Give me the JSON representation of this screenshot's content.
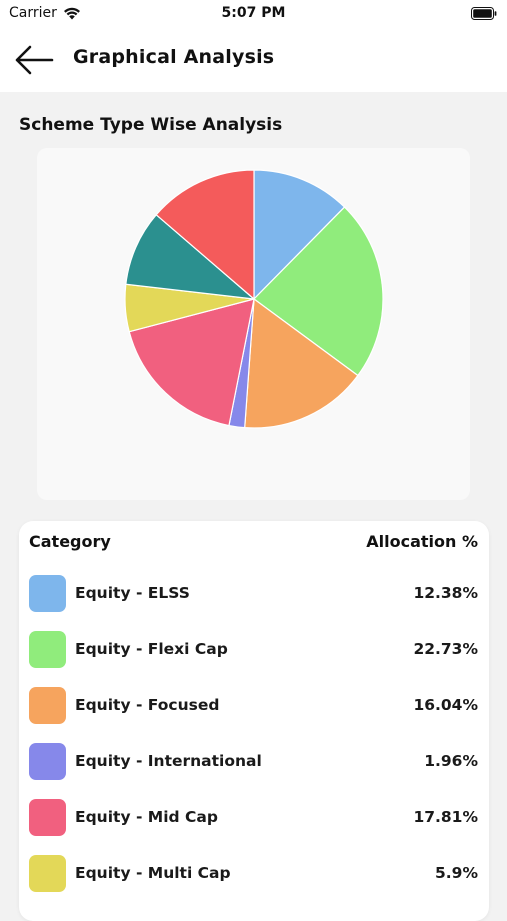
{
  "status_bar": {
    "carrier": "Carrier",
    "time": "5:07 PM"
  },
  "header": {
    "title": "Graphical Analysis"
  },
  "section": {
    "title": "Scheme Type Wise Analysis"
  },
  "table": {
    "col_category": "Category",
    "col_allocation": "Allocation %",
    "rows": [
      {
        "label": "Equity - ELSS",
        "value": "12.38%",
        "color": "#7eb6ec"
      },
      {
        "label": "Equity - Flexi Cap",
        "value": "22.73%",
        "color": "#90ec7c"
      },
      {
        "label": "Equity - Focused",
        "value": "16.04%",
        "color": "#f6a45e"
      },
      {
        "label": "Equity - International",
        "value": "1.96%",
        "color": "#8688ea"
      },
      {
        "label": "Equity - Mid Cap",
        "value": "17.81%",
        "color": "#f1607f"
      },
      {
        "label": "Equity - Multi Cap",
        "value": "5.9%",
        "color": "#e3d858"
      }
    ]
  },
  "chart_data": {
    "type": "pie",
    "slices": [
      {
        "label": "Equity - ELSS",
        "value": 12.38,
        "color": "#7eb6ec"
      },
      {
        "label": "Equity - Flexi Cap",
        "value": 22.73,
        "color": "#90ec7c"
      },
      {
        "label": "Equity - Focused",
        "value": 16.04,
        "color": "#f6a45e"
      },
      {
        "label": "Equity - International",
        "value": 1.96,
        "color": "#8688ea"
      },
      {
        "label": "Equity - Mid Cap",
        "value": 17.81,
        "color": "#f1607f"
      },
      {
        "label": "Equity - Multi Cap",
        "value": 5.9,
        "color": "#e3d858"
      },
      {
        "label": "",
        "value": 9.5,
        "color": "#2b908f"
      },
      {
        "label": "",
        "value": 13.68,
        "color": "#f45b5b"
      }
    ]
  }
}
